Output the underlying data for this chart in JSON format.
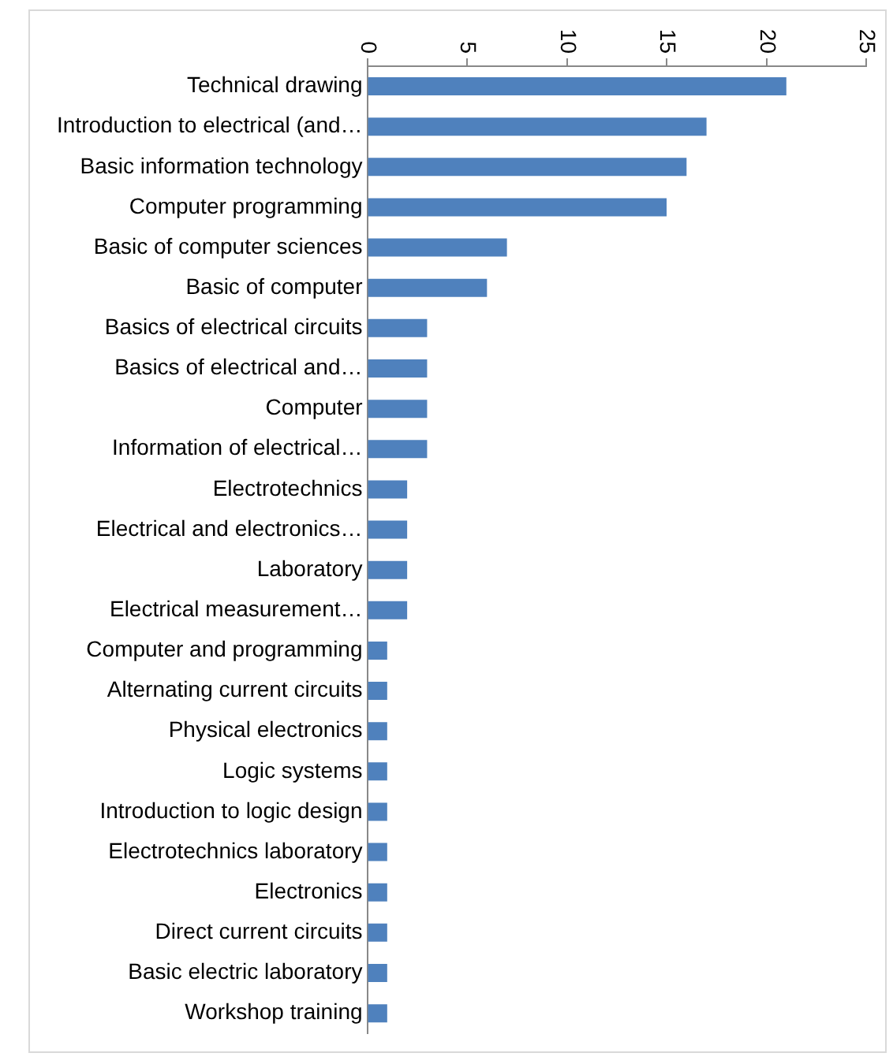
{
  "chart_data": {
    "type": "bar",
    "orientation": "horizontal",
    "categories": [
      "Technical drawing",
      "Introduction to electrical (and…",
      "Basic information technology",
      "Computer programming",
      "Basic of computer sciences",
      "Basic of computer",
      "Basics of electrical circuits",
      "Basics of electrical and…",
      "Computer",
      "Information of electrical…",
      "Electrotechnics",
      "Electrical and electronics…",
      "Laboratory",
      "Electrical measurement…",
      "Computer and programming",
      "Alternating current circuits",
      "Physical electronics",
      "Logic systems",
      "Introduction to logic design",
      "Electrotechnics laboratory",
      "Electronics",
      "Direct current circuits",
      "Basic electric laboratory",
      "Workshop training"
    ],
    "values": [
      21,
      17,
      16,
      15,
      7,
      6,
      3,
      3,
      3,
      3,
      2,
      2,
      2,
      2,
      1,
      1,
      1,
      1,
      1,
      1,
      1,
      1,
      1,
      1
    ],
    "color": "#4f81bd",
    "xlim": [
      0,
      25
    ],
    "xticks": [
      0,
      5,
      10,
      15,
      20,
      25
    ],
    "grid": false,
    "legend": false
  }
}
